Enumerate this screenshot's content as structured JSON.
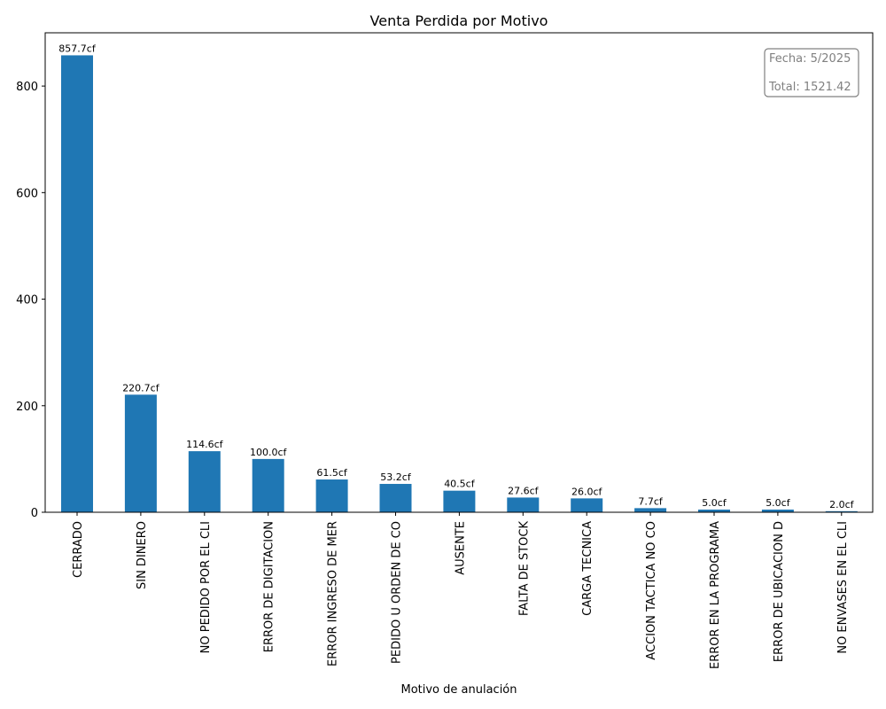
{
  "chart_data": {
    "type": "bar",
    "title": "Venta Perdida por Motivo",
    "xlabel": "Motivo de anulación",
    "ylabel": "",
    "ylim": [
      0,
      900
    ],
    "yticks": [
      0,
      200,
      400,
      600,
      800
    ],
    "grid": false,
    "bar_color": "#1f77b4",
    "categories": [
      "CERRADO",
      "SIN DINERO",
      "NO PEDIDO POR EL CLI",
      "ERROR DE DIGITACION",
      "ERROR INGRESO DE MER",
      "PEDIDO U ORDEN DE CO",
      "AUSENTE",
      "FALTA DE STOCK",
      "CARGA TECNICA",
      "ACCION TACTICA NO CO",
      "ERROR EN LA PROGRAMA",
      "ERROR DE UBICACION D",
      "NO ENVASES EN EL CLI"
    ],
    "values": [
      857.7,
      220.7,
      114.6,
      100.0,
      61.5,
      53.2,
      40.5,
      27.6,
      26.0,
      7.7,
      5.0,
      5.0,
      2.0
    ],
    "value_suffix": "cf",
    "annotation": {
      "placement": "top-right",
      "lines": [
        "Fecha: 5/2025",
        "Total: 1521.42"
      ],
      "text_color": "#808080"
    }
  }
}
